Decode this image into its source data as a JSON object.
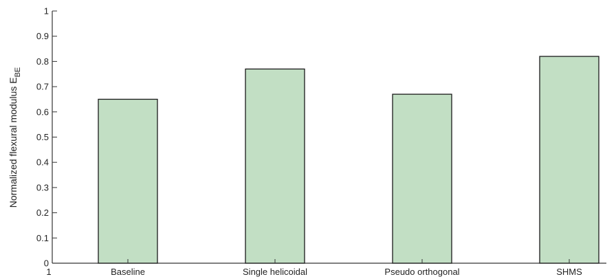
{
  "chart_data": {
    "type": "bar",
    "title": "",
    "xlabel": "",
    "ylabel": "Normalized flexural modulus E",
    "ylabel_subscript": "BE",
    "categories": [
      "Baseline",
      "Single helicoidal",
      "Pseudo orthogonal",
      "SHMS"
    ],
    "values": [
      0.65,
      0.77,
      0.67,
      0.82
    ],
    "ylim": [
      0,
      1
    ],
    "yticks": [
      "0",
      "0.1",
      "0.2",
      "0.3",
      "0.4",
      "0.5",
      "0.6",
      "0.7",
      "0.8",
      "0.9",
      "1"
    ],
    "x_origin_label": "1",
    "grid": false,
    "legend": "none",
    "bar_color": "#c2dfc4",
    "bar_edge_color": "#1a1a1a",
    "axis_color": "#333333"
  }
}
